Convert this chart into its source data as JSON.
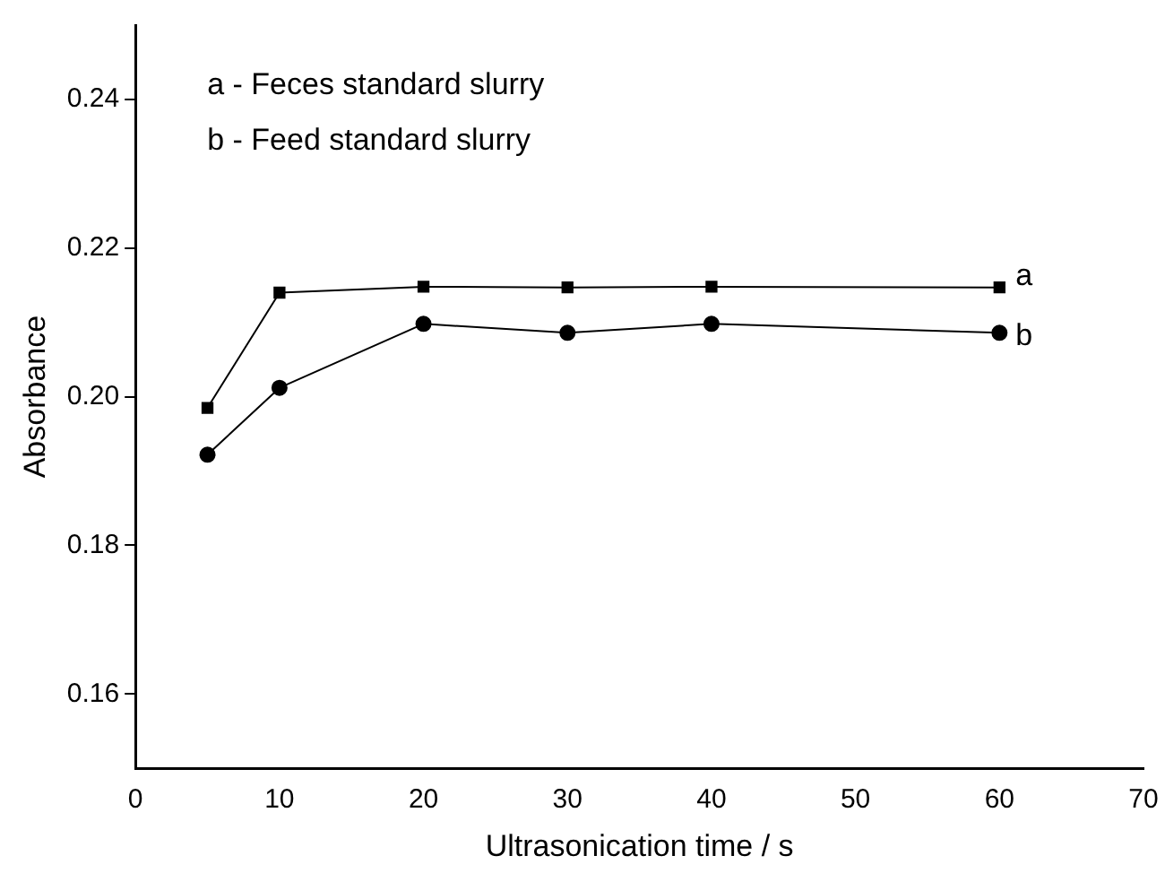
{
  "chart_data": {
    "type": "line",
    "xlabel": "Ultrasonication time / s",
    "ylabel": "Absorbance",
    "x": [
      5,
      10,
      20,
      30,
      40,
      60
    ],
    "series": [
      {
        "name": "a",
        "color": "#000000",
        "marker": "square",
        "values": [
          0.1985,
          0.214,
          0.2148,
          0.2147,
          0.2148,
          0.2147
        ]
      },
      {
        "name": "b",
        "color": "#000000",
        "marker": "circle",
        "values": [
          0.1922,
          0.2012,
          0.2098,
          0.2086,
          0.2098,
          0.2086
        ]
      }
    ],
    "xlim": [
      0,
      70
    ],
    "xticks": [
      0,
      10,
      20,
      30,
      40,
      50,
      60,
      70
    ],
    "ylim": [
      0.15,
      0.25
    ],
    "yticks": [
      0.16,
      0.18,
      {
        "value": 0.2,
        "label": "0.20"
      },
      0.22,
      0.24
    ],
    "annotations": [
      "a - Feces standard slurry",
      "b - Feed standard slurry"
    ],
    "grid": false,
    "legend": false
  }
}
